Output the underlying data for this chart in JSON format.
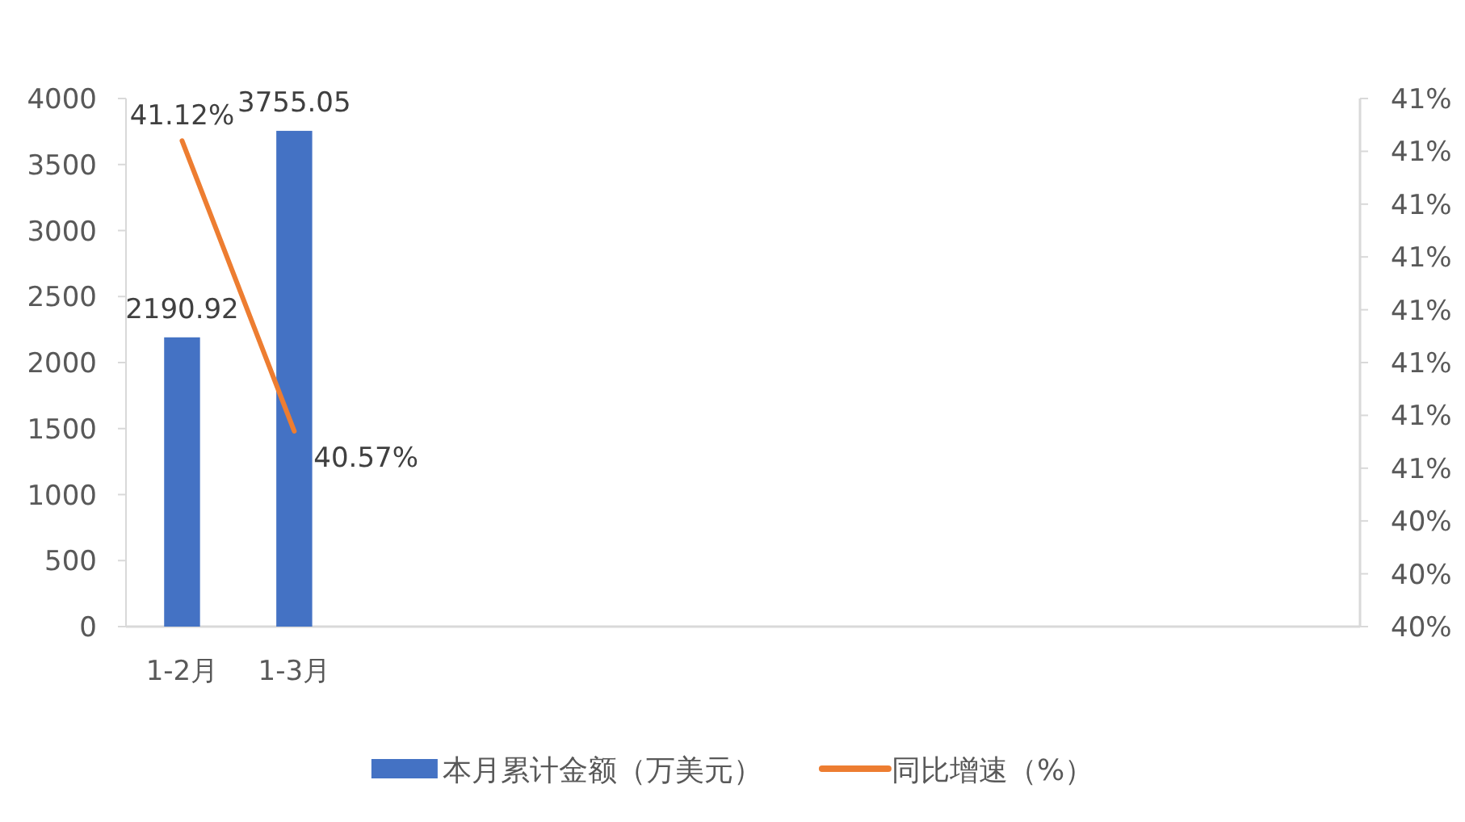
{
  "chart_data": {
    "type": "bar",
    "categories": [
      "1-2月",
      "1-3月",
      null,
      null,
      null,
      null,
      null,
      null,
      null,
      null,
      null
    ],
    "series": [
      {
        "name": "本月累计金额（万美元）",
        "color": "#4472c4",
        "values": [
          2190.92,
          3755.05,
          null,
          null,
          null,
          null,
          null,
          null,
          null,
          null,
          null
        ],
        "value_labels": [
          "2190.92",
          "3755.05",
          null,
          null,
          null,
          null,
          null,
          null,
          null,
          null,
          null
        ]
      },
      {
        "name": "同比增速（%）",
        "type": "line",
        "axis": "y2",
        "color": "#ed7d31",
        "values": [
          41.12,
          40.57,
          null,
          null,
          null,
          null,
          null,
          null,
          null,
          null,
          null
        ],
        "value_labels": [
          "41.12%",
          "40.57%",
          null,
          null,
          null,
          null,
          null,
          null,
          null,
          null,
          null
        ]
      }
    ],
    "ylim": [
      0,
      4000
    ],
    "yticks": [
      0,
      500,
      1000,
      1500,
      2000,
      2500,
      3000,
      3500,
      4000
    ],
    "y2lim": [
      40.2,
      41.2
    ],
    "y2ticks": [
      {
        "value": 40.2,
        "label": "40%"
      },
      {
        "value": 40.3,
        "label": "40%"
      },
      {
        "value": 40.4,
        "label": "40%"
      },
      {
        "value": 40.5,
        "label": "41%"
      },
      {
        "value": 40.6,
        "label": "41%"
      },
      {
        "value": 40.7,
        "label": "41%"
      },
      {
        "value": 40.8,
        "label": "41%"
      },
      {
        "value": 40.9,
        "label": "41%"
      },
      {
        "value": 41.0,
        "label": "41%"
      },
      {
        "value": 41.1,
        "label": "41%"
      },
      {
        "value": 41.2,
        "label": "41%"
      }
    ],
    "legend": "bottom"
  }
}
